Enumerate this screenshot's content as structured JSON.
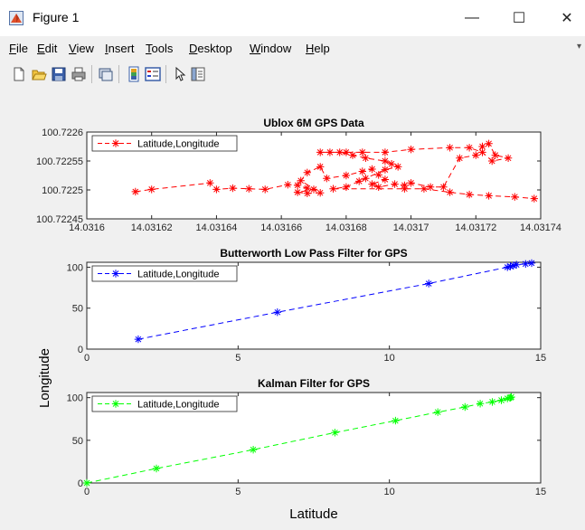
{
  "window": {
    "title": "Figure 1",
    "minimize_glyph": "—",
    "maximize_glyph": "☐",
    "close_glyph": "✕"
  },
  "menu": {
    "items": [
      "File",
      "Edit",
      "View",
      "Insert",
      "Tools",
      "Desktop",
      "Window",
      "Help"
    ]
  },
  "toolbar": {
    "buttons": [
      "new-figure-icon",
      "open-file-icon",
      "save-icon",
      "print-icon",
      "link-plot-icon",
      "insert-colorbar-icon",
      "insert-legend-icon",
      "edit-plot-arrow-icon",
      "property-editor-icon"
    ]
  },
  "colors": {
    "raw": "#ff0000",
    "butterworth": "#0000ff",
    "kalman": "#00ff00",
    "axes_border": "#262626"
  },
  "figure": {
    "ylabel": "Longitude",
    "xlabel": "Latitude"
  },
  "chart_data": [
    {
      "type": "line",
      "title": "Ublox 6M GPS Data",
      "legend": "Latitude,Longitude",
      "legend_placement": "top-left",
      "line_style": "dashed",
      "marker": "*",
      "color": "#ff0000",
      "xlim": [
        14.0316,
        14.03174
      ],
      "ylim": [
        100.72245,
        100.7226
      ],
      "xticks": [
        14.0316,
        14.03162,
        14.03164,
        14.03166,
        14.03168,
        14.0317,
        14.03172,
        14.03174
      ],
      "xtick_labels": [
        "14.0316",
        "14.03162",
        "14.03164",
        "14.03166",
        "14.03168",
        "14.0317",
        "14.03172",
        "14.03174"
      ],
      "yticks": [
        100.72245,
        100.7225,
        100.72255,
        100.7226
      ],
      "ytick_labels": [
        "100.72245",
        "100.7225",
        "100.72255",
        "100.7226"
      ],
      "x": [
        14.031615,
        14.03162,
        14.031638,
        14.03164,
        14.031645,
        14.03165,
        14.031655,
        14.031662,
        14.031665,
        14.031668,
        14.03167,
        14.031665,
        14.031668,
        14.031672,
        14.031666,
        14.031668,
        14.031672,
        14.031674,
        14.03168,
        14.031685,
        14.031688,
        14.03169,
        14.031692,
        14.031688,
        14.03169,
        14.031695,
        14.031698,
        14.0317,
        14.031706,
        14.03171,
        14.031715,
        14.03172,
        14.031722,
        14.031724,
        14.031726,
        14.03173,
        14.031725,
        14.031722,
        14.031718,
        14.031712,
        14.0317,
        14.031692,
        14.031685,
        14.03168,
        14.031675,
        14.031672,
        14.031678,
        14.031682,
        14.031686,
        14.031692,
        14.031694,
        14.031696,
        14.031692,
        14.031686,
        14.031684,
        14.03168,
        14.031676,
        14.031698,
        14.031704,
        14.031712,
        14.031718,
        14.031724,
        14.031732,
        14.031738
      ],
      "y": [
        100.722497,
        100.722501,
        100.722512,
        100.722501,
        100.722503,
        100.722502,
        100.722501,
        100.722509,
        100.722508,
        100.722503,
        100.722501,
        100.722496,
        100.722494,
        100.722495,
        100.722516,
        100.72253,
        100.72254,
        100.72252,
        100.722525,
        100.722532,
        100.722536,
        100.722526,
        100.722518,
        100.72251,
        100.722505,
        100.72251,
        100.722508,
        100.722512,
        100.722505,
        100.722505,
        100.722555,
        100.72256,
        100.722575,
        100.72258,
        100.72256,
        100.722555,
        100.72255,
        100.722565,
        100.722573,
        100.722573,
        100.72257,
        100.722565,
        100.722565,
        100.722565,
        100.722565,
        100.722565,
        100.722565,
        100.72256,
        100.722555,
        100.72255,
        100.722545,
        100.72254,
        100.722535,
        100.72252,
        100.722515,
        100.722505,
        100.722502,
        100.722502,
        100.722502,
        100.722496,
        100.722492,
        100.72249,
        100.722488,
        100.722485
      ]
    },
    {
      "type": "line",
      "title": "Butterworth Low Pass Filter for GPS",
      "legend": "Latitude,Longitude",
      "legend_placement": "top-left",
      "line_style": "dashed",
      "marker": "*",
      "color": "#0000ff",
      "xlim": [
        0,
        15
      ],
      "ylim": [
        0,
        106
      ],
      "xticks": [
        0,
        5,
        10,
        15
      ],
      "xtick_labels": [
        "0",
        "5",
        "10",
        "15"
      ],
      "yticks": [
        0,
        50,
        100
      ],
      "ytick_labels": [
        "0",
        "50",
        "100"
      ],
      "x": [
        1.7,
        6.3,
        11.3,
        13.9,
        14.0,
        14.1,
        14.2,
        14.5,
        14.7
      ],
      "y": [
        12,
        45,
        80,
        100,
        101,
        102,
        103,
        104,
        105
      ]
    },
    {
      "type": "line",
      "title": "Kalman Filter for GPS",
      "legend": "Latitude,Longitude",
      "legend_placement": "top-left",
      "line_style": "dashed",
      "marker": "*",
      "color": "#00ff00",
      "xlim": [
        0,
        15
      ],
      "ylim": [
        0,
        106
      ],
      "xticks": [
        0,
        5,
        10,
        15
      ],
      "xtick_labels": [
        "0",
        "5",
        "10",
        "15"
      ],
      "yticks": [
        0,
        50,
        100
      ],
      "ytick_labels": [
        "0",
        "50",
        "100"
      ],
      "x": [
        0,
        2.3,
        5.5,
        8.2,
        10.2,
        11.6,
        12.5,
        13.0,
        13.4,
        13.7,
        13.9,
        14.0,
        14.03
      ],
      "y": [
        0,
        17,
        39,
        59,
        73,
        83,
        89,
        93,
        95,
        97,
        99,
        100,
        100.7
      ]
    }
  ]
}
